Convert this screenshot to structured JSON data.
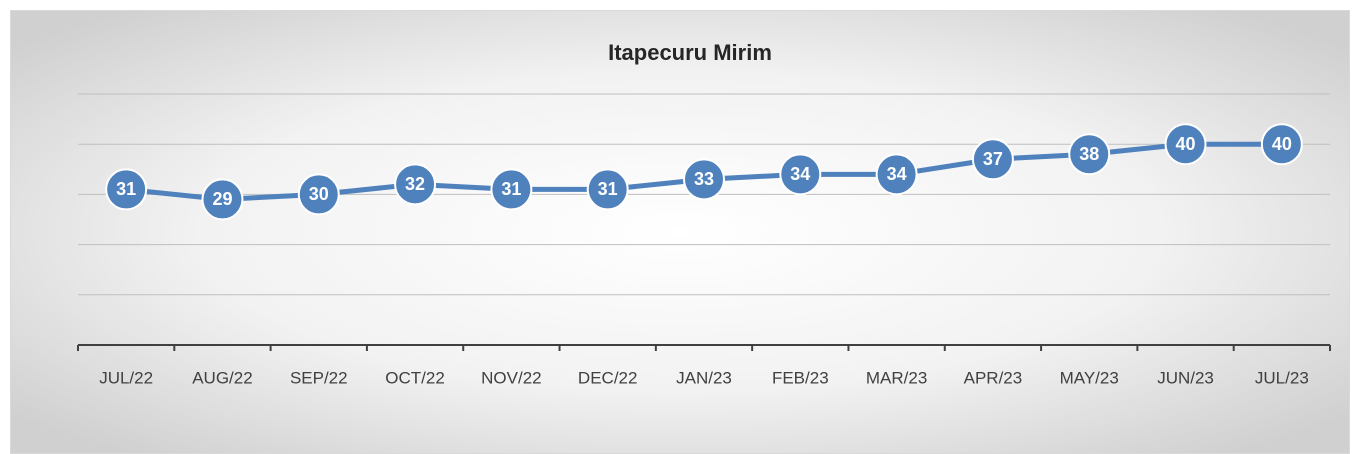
{
  "chart_data": {
    "type": "line",
    "title": "Itapecuru Mirim",
    "categories": [
      "JUL/22",
      "AUG/22",
      "SEP/22",
      "OCT/22",
      "NOV/22",
      "DEC/22",
      "JAN/23",
      "FEB/23",
      "MAR/23",
      "APR/23",
      "MAY/23",
      "JUN/23",
      "JUL/23"
    ],
    "series": [
      {
        "name": "Itapecuru Mirim",
        "color": "#4f81bd",
        "values": [
          31,
          29,
          30,
          32,
          31,
          31,
          33,
          34,
          34,
          37,
          38,
          40,
          40
        ]
      }
    ],
    "ylim": [
      0,
      50
    ],
    "yticks": [
      0,
      10,
      20,
      30,
      40,
      50
    ],
    "grid": true
  }
}
